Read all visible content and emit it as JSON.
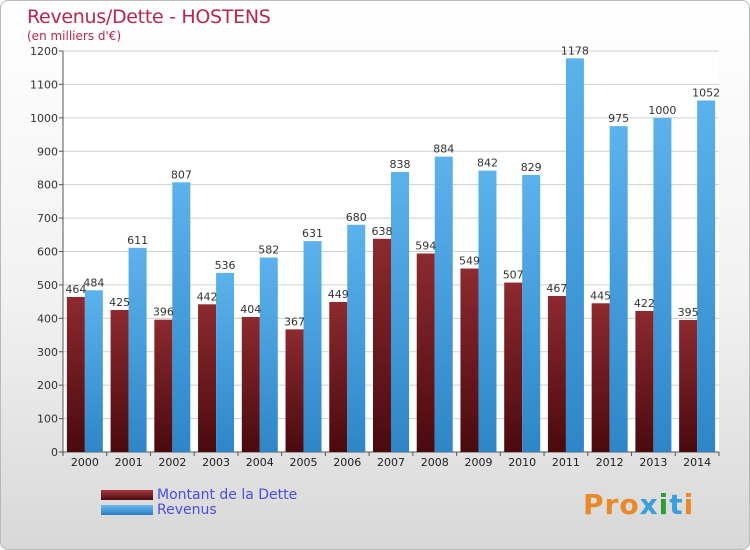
{
  "title": "Revenus/Dette - HOSTENS",
  "subtitle": "(en milliers d'€)",
  "logo": {
    "text": "Proxiti",
    "colors": [
      "#e8892a",
      "#e8892a",
      "#e8892a",
      "#3aa0d8",
      "#2f9a3a",
      "#3aa0d8",
      "#e8892a"
    ]
  },
  "chart_data": {
    "type": "bar",
    "title": "Revenus/Dette - HOSTENS",
    "ylabel": "(en milliers d'€)",
    "xlabel": "",
    "categories": [
      "2000",
      "2001",
      "2002",
      "2003",
      "2004",
      "2005",
      "2006",
      "2007",
      "2008",
      "2009",
      "2010",
      "2011",
      "2012",
      "2013",
      "2014"
    ],
    "ylim": [
      0,
      1200
    ],
    "yticks": [
      0,
      100,
      200,
      300,
      400,
      500,
      600,
      700,
      800,
      900,
      1000,
      1100,
      1200
    ],
    "grid": true,
    "legend_position": "bottom-left",
    "series": [
      {
        "name": "Montant de la Dette",
        "color": "#7a1f24",
        "values": [
          464,
          425,
          396,
          442,
          404,
          367,
          449,
          638,
          594,
          549,
          507,
          467,
          445,
          422,
          395
        ]
      },
      {
        "name": "Revenus",
        "color": "#4aa6e6",
        "values": [
          484,
          611,
          807,
          536,
          582,
          631,
          680,
          838,
          884,
          842,
          829,
          1178,
          975,
          1000,
          1052
        ]
      }
    ]
  }
}
